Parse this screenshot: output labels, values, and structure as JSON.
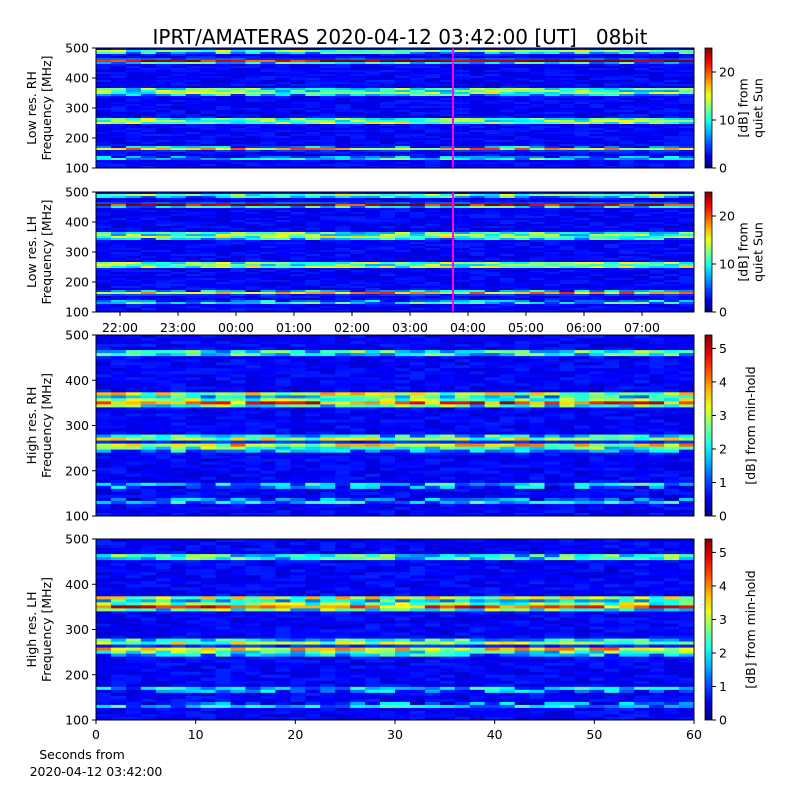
{
  "title": "IPRT/AMATERAS 2020-04-12 03:42:00 [UT]   08bit",
  "chart_data": [
    {
      "type": "heatmap",
      "ylabel": [
        "Low res. RH",
        "Frequency [MHz]"
      ],
      "ylim": [
        100,
        500
      ],
      "yticks": [
        100,
        200,
        300,
        400,
        500
      ],
      "colorbar_label": [
        "[dB] from",
        "quiet Sun"
      ],
      "clim": [
        0,
        25
      ],
      "cticks": [
        0,
        10,
        20
      ]
    },
    {
      "type": "heatmap",
      "ylabel": [
        "Low res. LH",
        "Frequency [MHz]"
      ],
      "ylim": [
        100,
        500
      ],
      "yticks": [
        100,
        200,
        300,
        400,
        500
      ],
      "colorbar_label": [
        "[dB] from",
        "quiet Sun"
      ],
      "clim": [
        0,
        25
      ],
      "cticks": [
        0,
        10,
        20
      ],
      "time_ticks": [
        "22:00",
        "23:00",
        "00:00",
        "01:00",
        "02:00",
        "03:00",
        "04:00",
        "05:00",
        "06:00",
        "07:00"
      ]
    },
    {
      "type": "heatmap",
      "ylabel": [
        "High res. RH",
        "Frequency [MHz]"
      ],
      "ylim": [
        100,
        500
      ],
      "yticks": [
        100,
        200,
        300,
        400,
        500
      ],
      "colorbar_label": [
        "[dB] from min-hold"
      ],
      "clim": [
        0,
        5.4
      ],
      "cticks": [
        0,
        1,
        2,
        3,
        4,
        5
      ]
    },
    {
      "type": "heatmap",
      "ylabel": [
        "High res. LH",
        "Frequency [MHz]"
      ],
      "ylim": [
        100,
        500
      ],
      "yticks": [
        100,
        200,
        300,
        400,
        500
      ],
      "colorbar_label": [
        "[dB] from min-hold"
      ],
      "clim": [
        0,
        5.4
      ],
      "cticks": [
        0,
        1,
        2,
        3,
        4,
        5
      ],
      "xlim": [
        0,
        60
      ],
      "xticks": [
        0,
        10,
        20,
        30,
        40,
        50,
        60
      ],
      "xlabel": [
        "Seconds from",
        "2020-04-12 03:42:00"
      ]
    }
  ]
}
